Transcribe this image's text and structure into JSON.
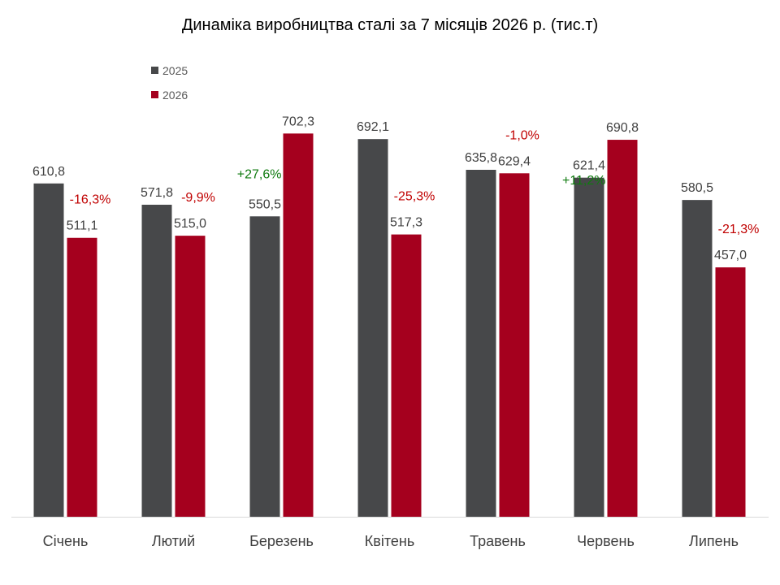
{
  "chart_data": {
    "type": "bar",
    "title": "Динаміка виробництва сталі за 7 місяців 2026 р. (тис.т)",
    "categories": [
      "Січень",
      "Лютий",
      "Березень",
      "Квітень",
      "Травень",
      "Червень",
      "Липень"
    ],
    "series": [
      {
        "name": "2025",
        "color": "#47484a",
        "values": [
          610.8,
          571.8,
          550.5,
          692.1,
          635.8,
          621.4,
          580.5
        ],
        "labels": [
          "610,8",
          "571,8",
          "550,5",
          "692,1",
          "635,8",
          "621,4",
          "580,5"
        ]
      },
      {
        "name": "2026",
        "color": "#a5001e",
        "values": [
          511.1,
          515.0,
          702.3,
          517.3,
          629.4,
          690.8,
          457.0
        ],
        "labels": [
          "511,1",
          "515,0",
          "702,3",
          "517,3",
          "629,4",
          "690,8",
          "457,0"
        ]
      }
    ],
    "changes": [
      "-16,3%",
      "-9,9%",
      "+27,6%",
      "-25,3%",
      "-1,0%",
      "+11,2%",
      "-21,3%"
    ],
    "change_colors": {
      "negative": "#c00000",
      "positive": "#0f7a0f"
    },
    "ylim": [
      0,
      720
    ],
    "grid": false,
    "legend_position": "top-left",
    "xlabel": "",
    "ylabel": ""
  }
}
